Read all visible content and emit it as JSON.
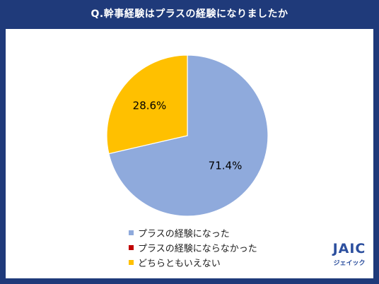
{
  "title": "Q.幹事経験はプラスの経験になりましたか",
  "chart_data": {
    "type": "pie",
    "title": "Q.幹事経験はプラスの経験になりましたか",
    "start_angle_deg": 0,
    "direction": "clockwise",
    "slices": [
      {
        "label": "プラスの経験になった",
        "value": 71.4,
        "display": "71.4%",
        "color": "#8faadc"
      },
      {
        "label": "プラスの経験にならなかった",
        "value": 0.0,
        "display": "",
        "color": "#c00000"
      },
      {
        "label": "どちらともいえない",
        "value": 28.6,
        "display": "28.6%",
        "color": "#ffc000"
      }
    ],
    "legend_position": "bottom"
  },
  "legend": [
    {
      "label": "プラスの経験になった",
      "color": "#8faadc"
    },
    {
      "label": "プラスの経験にならなかった",
      "color": "#c00000"
    },
    {
      "label": "どちらともいえない",
      "color": "#ffc000"
    }
  ],
  "logo": {
    "main": "JAIC",
    "sub": "ジェイック"
  }
}
